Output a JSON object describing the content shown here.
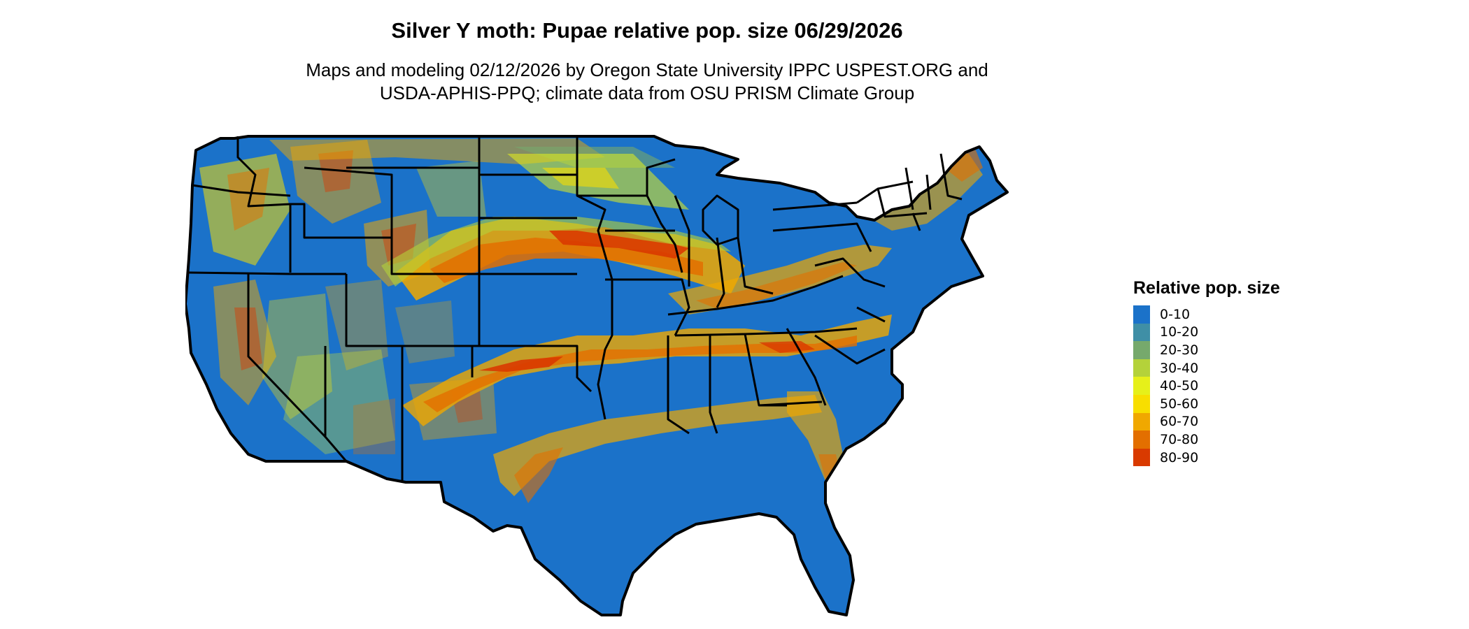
{
  "title": "Silver Y moth: Pupae relative pop. size 06/29/2026",
  "subtitle": {
    "line1": "Maps and modeling 02/12/2026 by Oregon State University IPPC USPEST.ORG and",
    "line2": "USDA-APHIS-PPQ; climate data from OSU PRISM Climate Group"
  },
  "legend": {
    "title": "Relative pop. size",
    "items": [
      {
        "label": "0-10",
        "color": "#1b72c9"
      },
      {
        "label": "10-20",
        "color": "#3f8fa6"
      },
      {
        "label": "20-30",
        "color": "#76a96c"
      },
      {
        "label": "30-40",
        "color": "#b4d23a"
      },
      {
        "label": "40-50",
        "color": "#e6f01a"
      },
      {
        "label": "50-60",
        "color": "#f8de00"
      },
      {
        "label": "60-70",
        "color": "#f0a800"
      },
      {
        "label": "70-80",
        "color": "#e36f00"
      },
      {
        "label": "80-90",
        "color": "#d93a00"
      }
    ]
  },
  "map": {
    "region": "Contiguous United States",
    "base_color": "#1b72c9",
    "border_color": "#000000"
  }
}
